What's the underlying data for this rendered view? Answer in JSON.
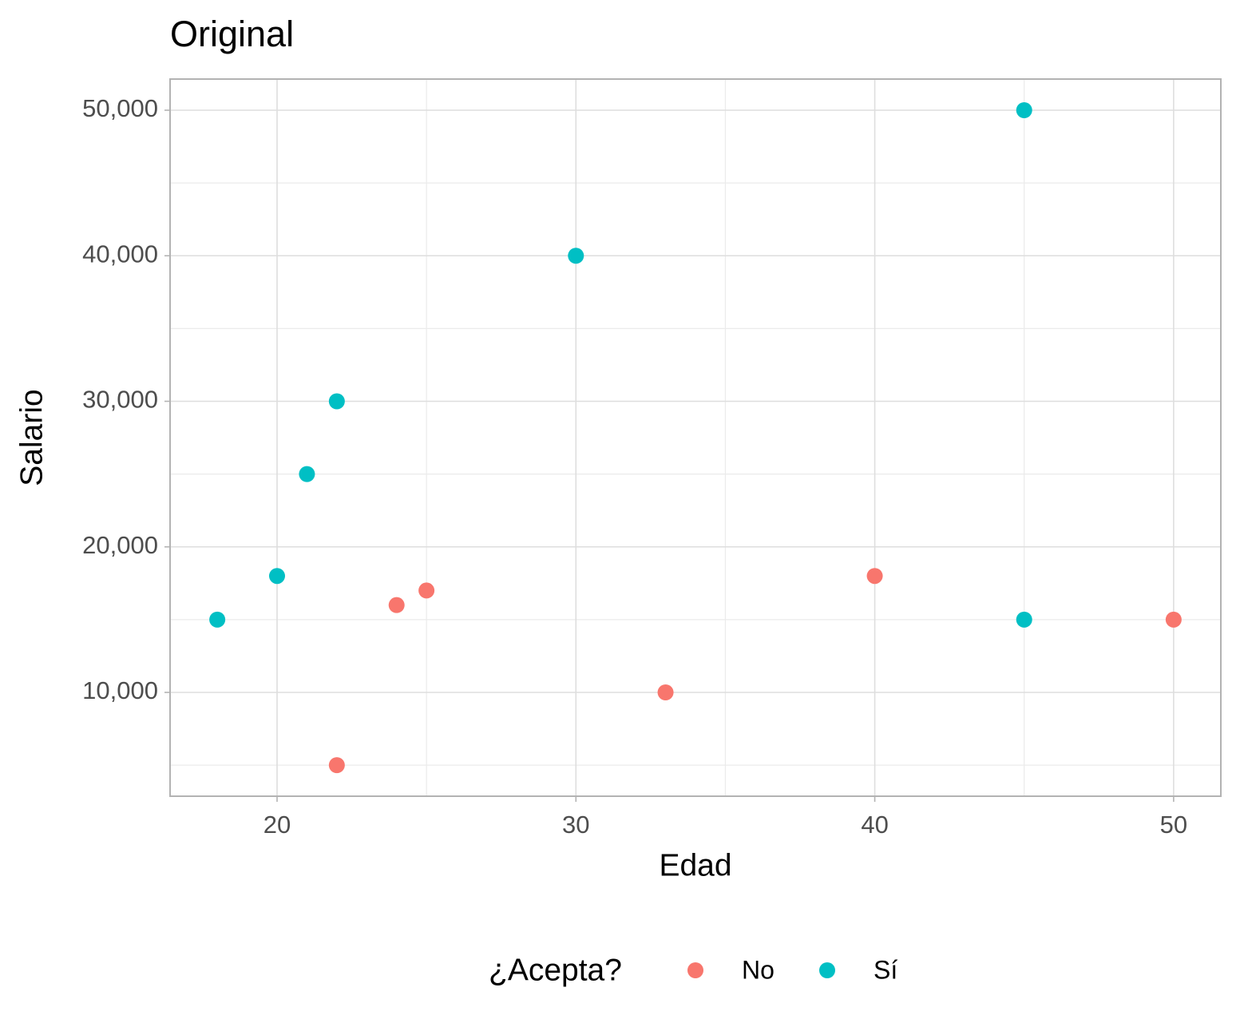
{
  "chart_data": {
    "type": "scatter",
    "title": "Original",
    "x_label": "Edad",
    "y_label": "Salario",
    "legend_title": "¿Acepta?",
    "series": [
      {
        "name": "No",
        "color": "#F8766D",
        "x": [
          22,
          24,
          25,
          33,
          40,
          50
        ],
        "values": [
          5000,
          16000,
          17000,
          10000,
          18000,
          15000
        ]
      },
      {
        "name": "Sí",
        "color": "#00BFC4",
        "x": [
          18,
          20,
          21,
          22,
          30,
          45,
          45
        ],
        "values": [
          15000,
          18000,
          25000,
          30000,
          40000,
          50000,
          15000
        ]
      }
    ],
    "xlim": [
      16.42,
      51.58
    ],
    "ylim": [
      2867,
      52140
    ],
    "xticks": [
      20,
      30,
      40,
      50
    ],
    "yticks": [
      {
        "value": 10000,
        "label": "10,000"
      },
      {
        "value": 20000,
        "label": "20,000"
      },
      {
        "value": 30000,
        "label": "30,000"
      },
      {
        "value": 40000,
        "label": "40,000"
      },
      {
        "value": 50000,
        "label": "50,000"
      }
    ],
    "grid": true,
    "legend_position": "bottom"
  }
}
